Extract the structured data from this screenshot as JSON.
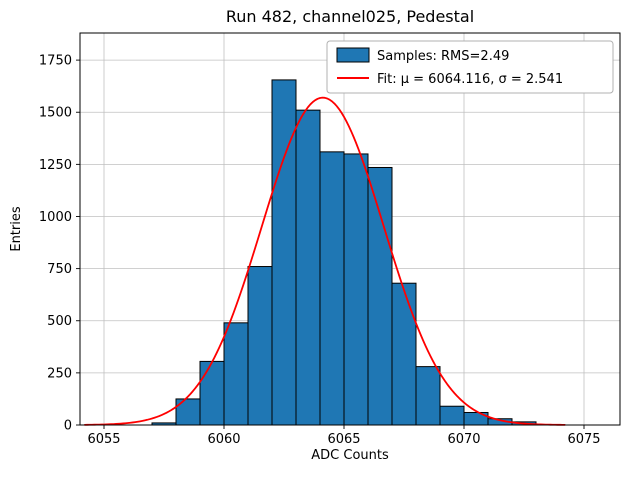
{
  "chart_data": {
    "type": "bar",
    "subtype": "histogram",
    "title": "Run 482, channel025, Pedestal",
    "xlabel": "ADC Counts",
    "ylabel": "Entries",
    "xlim": [
      6054,
      6076.5
    ],
    "ylim": [
      0,
      1880
    ],
    "xticks": [
      6055,
      6060,
      6065,
      6070,
      6075
    ],
    "yticks": [
      0,
      250,
      500,
      750,
      1000,
      1250,
      1500,
      1750
    ],
    "grid": true,
    "legend_position": "upper right",
    "bin_edges": [
      6057,
      6058,
      6059,
      6060,
      6061,
      6062,
      6063,
      6064,
      6065,
      6066,
      6067,
      6068,
      6069,
      6070,
      6071,
      6072,
      6073
    ],
    "series": [
      {
        "name": "Samples: RMS=2.49",
        "type": "histogram",
        "fill_color": "#1f77b4",
        "edge_color": "#000000",
        "counts": [
          10,
          125,
          305,
          490,
          760,
          1655,
          1510,
          1310,
          1300,
          1235,
          680,
          280,
          90,
          60,
          30,
          15
        ]
      },
      {
        "name": "Fit: μ = 6064.116, σ = 2.541",
        "type": "gaussian_fit",
        "color": "#ff0000",
        "mu": 6064.116,
        "sigma": 2.541,
        "peak": 1570,
        "x_range": [
          6054.2,
          6074.2
        ]
      }
    ]
  }
}
